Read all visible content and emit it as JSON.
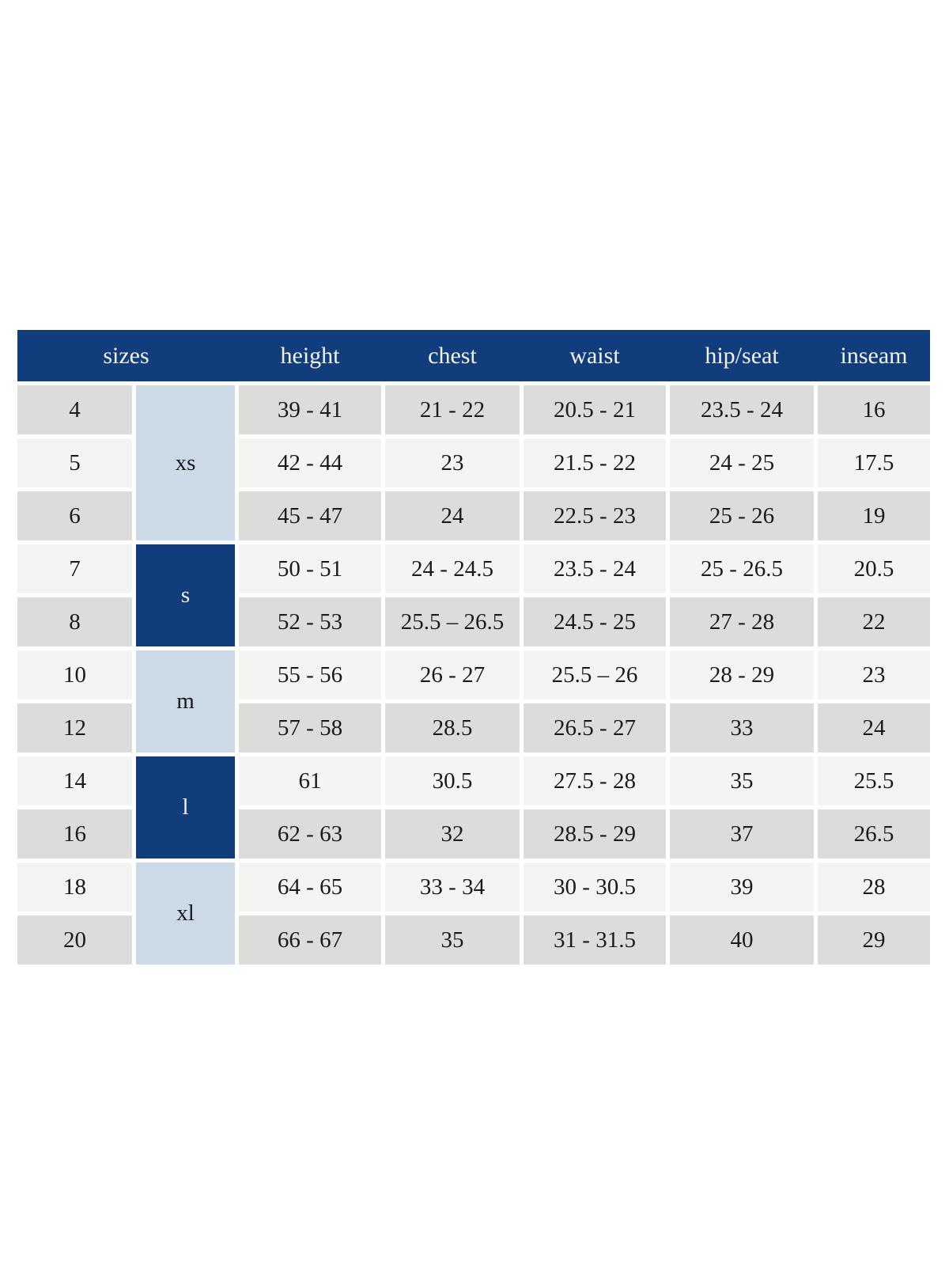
{
  "table": {
    "colors": {
      "header_bg": "#113d7c",
      "header_text": "#f4f2ee",
      "group_light_bg": "#ccd9e7",
      "group_dark_bg": "#113d7c",
      "row_shade_dark": "#dcdcdb",
      "row_shade_light": "#f4f4f3",
      "body_text": "#1b1b1b"
    },
    "header": {
      "sizes": "sizes",
      "height": "height",
      "chest": "chest",
      "waist": "waist",
      "hip_seat": "hip/seat",
      "inseam": "inseam"
    },
    "groups": [
      {
        "label": "xs",
        "rows_spanned": 3,
        "tone": "light"
      },
      {
        "label": "s",
        "rows_spanned": 2,
        "tone": "dark"
      },
      {
        "label": "m",
        "rows_spanned": 2,
        "tone": "light"
      },
      {
        "label": "l",
        "rows_spanned": 2,
        "tone": "dark"
      },
      {
        "label": "xl",
        "rows_spanned": 2,
        "tone": "light"
      }
    ],
    "rows": [
      {
        "size": "4",
        "height": "39 - 41",
        "chest": "21 - 22",
        "waist": "20.5 - 21",
        "hip_seat": "23.5 - 24",
        "inseam": "16"
      },
      {
        "size": "5",
        "height": "42 - 44",
        "chest": "23",
        "waist": "21.5 - 22",
        "hip_seat": "24 - 25",
        "inseam": "17.5"
      },
      {
        "size": "6",
        "height": "45 - 47",
        "chest": "24",
        "waist": "22.5 - 23",
        "hip_seat": "25 - 26",
        "inseam": "19"
      },
      {
        "size": "7",
        "height": "50 - 51",
        "chest": "24 - 24.5",
        "waist": "23.5 - 24",
        "hip_seat": "25 - 26.5",
        "inseam": "20.5"
      },
      {
        "size": "8",
        "height": "52 - 53",
        "chest": "25.5 – 26.5",
        "waist": "24.5 - 25",
        "hip_seat": "27 - 28",
        "inseam": "22"
      },
      {
        "size": "10",
        "height": "55 - 56",
        "chest": "26 - 27",
        "waist": "25.5 – 26",
        "hip_seat": "28 - 29",
        "inseam": "23"
      },
      {
        "size": "12",
        "height": "57 - 58",
        "chest": "28.5",
        "waist": "26.5 - 27",
        "hip_seat": "33",
        "inseam": "24"
      },
      {
        "size": "14",
        "height": "61",
        "chest": "30.5",
        "waist": "27.5 - 28",
        "hip_seat": "35",
        "inseam": "25.5"
      },
      {
        "size": "16",
        "height": "62 - 63",
        "chest": "32",
        "waist": "28.5 - 29",
        "hip_seat": "37",
        "inseam": "26.5"
      },
      {
        "size": "18",
        "height": "64 - 65",
        "chest": "33 - 34",
        "waist": "30 - 30.5",
        "hip_seat": "39",
        "inseam": "28"
      },
      {
        "size": "20",
        "height": "66 - 67",
        "chest": "35",
        "waist": "31 - 31.5",
        "hip_seat": "40",
        "inseam": "29"
      }
    ]
  }
}
